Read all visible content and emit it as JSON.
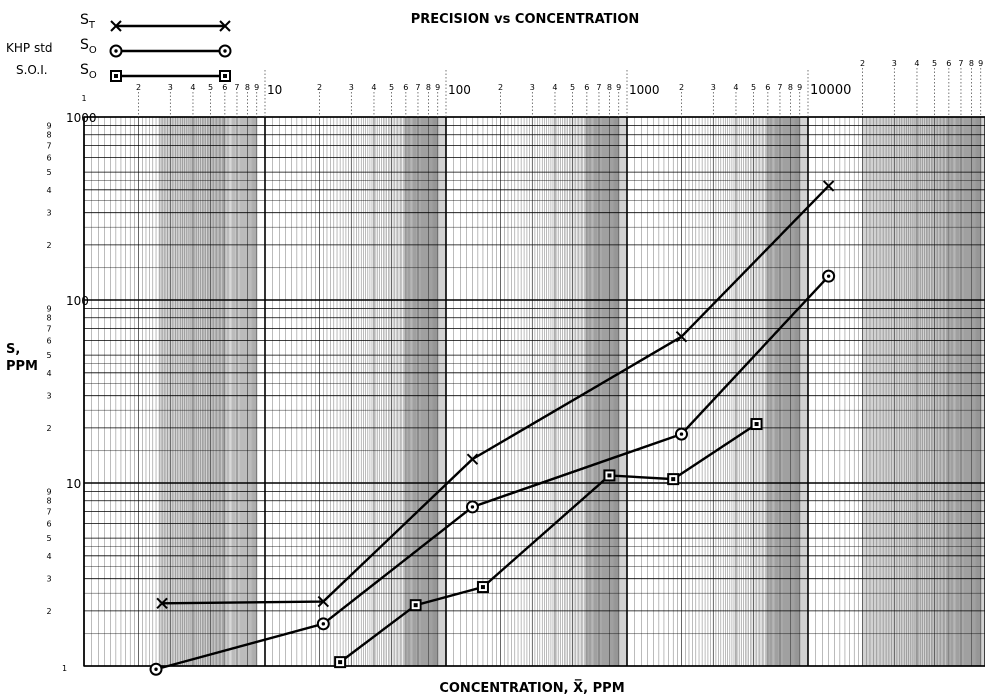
{
  "chart_data": {
    "type": "line",
    "title": "PRECISION vs CONCENTRATION",
    "xlabel": "CONCENTRATION, X̅, PPM",
    "ylabel_line1": "S,",
    "ylabel_line2": "PPM",
    "x_scale": "log",
    "y_scale": "log",
    "xlim": [
      1,
      100000
    ],
    "ylim": [
      1,
      1000
    ],
    "x_decade_labels": [
      "1",
      "10",
      "100",
      "1000",
      "10000"
    ],
    "x_minor_labels": [
      "2",
      "3",
      "4",
      "5",
      "6",
      "7",
      "8",
      "9"
    ],
    "y_decade_labels": [
      "1",
      "10",
      "100",
      "1000"
    ],
    "y_minor_labels": [
      "2",
      "3",
      "4",
      "5",
      "6",
      "7",
      "8",
      "9"
    ],
    "grid": true,
    "legend": {
      "group_label_1": "KHP std",
      "group_label_2": "S.O.I.",
      "position": "top-left"
    },
    "series": [
      {
        "name": "ST",
        "name_main": "S",
        "name_sub": "T",
        "marker": "x",
        "x": [
          2.7,
          21,
          140,
          2000,
          13000
        ],
        "y": [
          2.2,
          2.25,
          13.5,
          63,
          420
        ]
      },
      {
        "name": "SO",
        "name_main": "S",
        "name_sub": "O",
        "marker": "circle",
        "x": [
          2.5,
          21,
          140,
          2000,
          13000
        ],
        "y": [
          0.96,
          1.7,
          7.4,
          18.5,
          135
        ]
      },
      {
        "name": "SO",
        "name_main": "S",
        "name_sub": "O",
        "marker": "square",
        "x": [
          26,
          68,
          160,
          800,
          1800,
          5200
        ],
        "y": [
          1.05,
          2.15,
          2.7,
          11,
          10.5,
          21
        ]
      }
    ]
  }
}
